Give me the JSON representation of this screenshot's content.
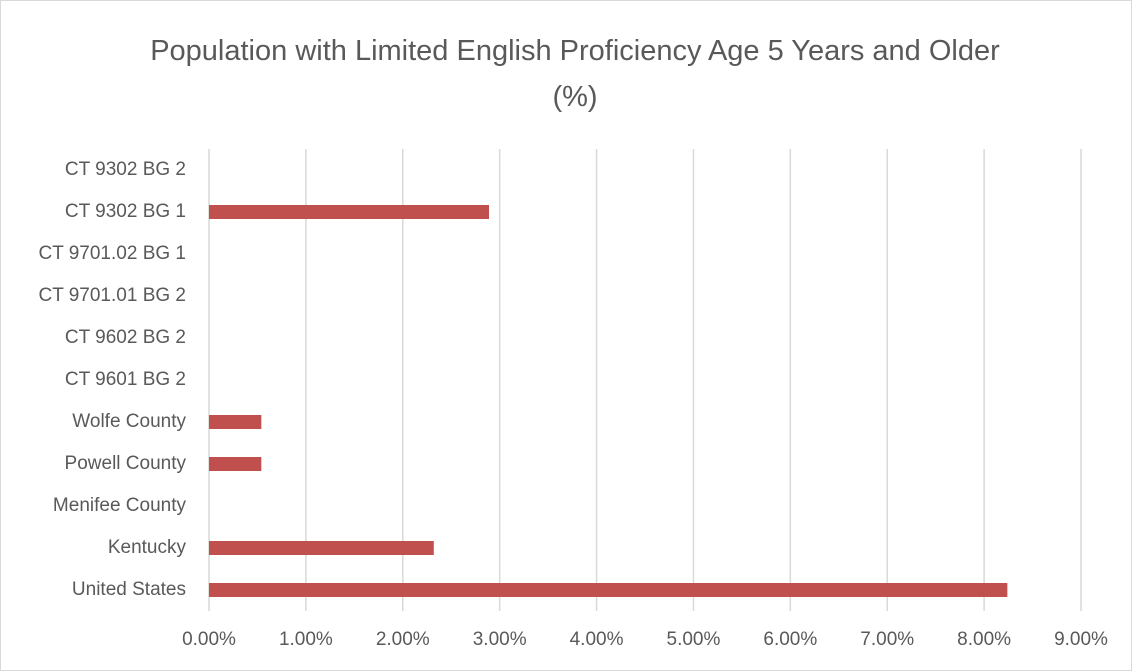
{
  "chart_data": {
    "type": "bar",
    "orientation": "horizontal",
    "title": "Population with Limited English Proficiency Age 5 Years and Older (%)",
    "categories": [
      "CT 9302 BG 2",
      "CT 9302 BG 1",
      "CT 9701.02 BG 1",
      "CT 9701.01 BG 2",
      "CT 9602 BG 2",
      "CT 9601 BG 2",
      "Wolfe County",
      "Powell County",
      "Menifee County",
      "Kentucky",
      "United States"
    ],
    "values": [
      0,
      2.89,
      0,
      0,
      0,
      0,
      0.54,
      0.54,
      0,
      2.32,
      8.24
    ],
    "color": "#c0504d",
    "xlim": [
      0,
      9
    ],
    "xticks": [
      {
        "value": 0,
        "label": "0.00%"
      },
      {
        "value": 1,
        "label": "1.00%"
      },
      {
        "value": 2,
        "label": "2.00%"
      },
      {
        "value": 3,
        "label": "3.00%"
      },
      {
        "value": 4,
        "label": "4.00%"
      },
      {
        "value": 5,
        "label": "5.00%"
      },
      {
        "value": 6,
        "label": "6.00%"
      },
      {
        "value": 7,
        "label": "7.00%"
      },
      {
        "value": 8,
        "label": "8.00%"
      },
      {
        "value": 9,
        "label": "9.00%"
      }
    ],
    "grid": true
  }
}
